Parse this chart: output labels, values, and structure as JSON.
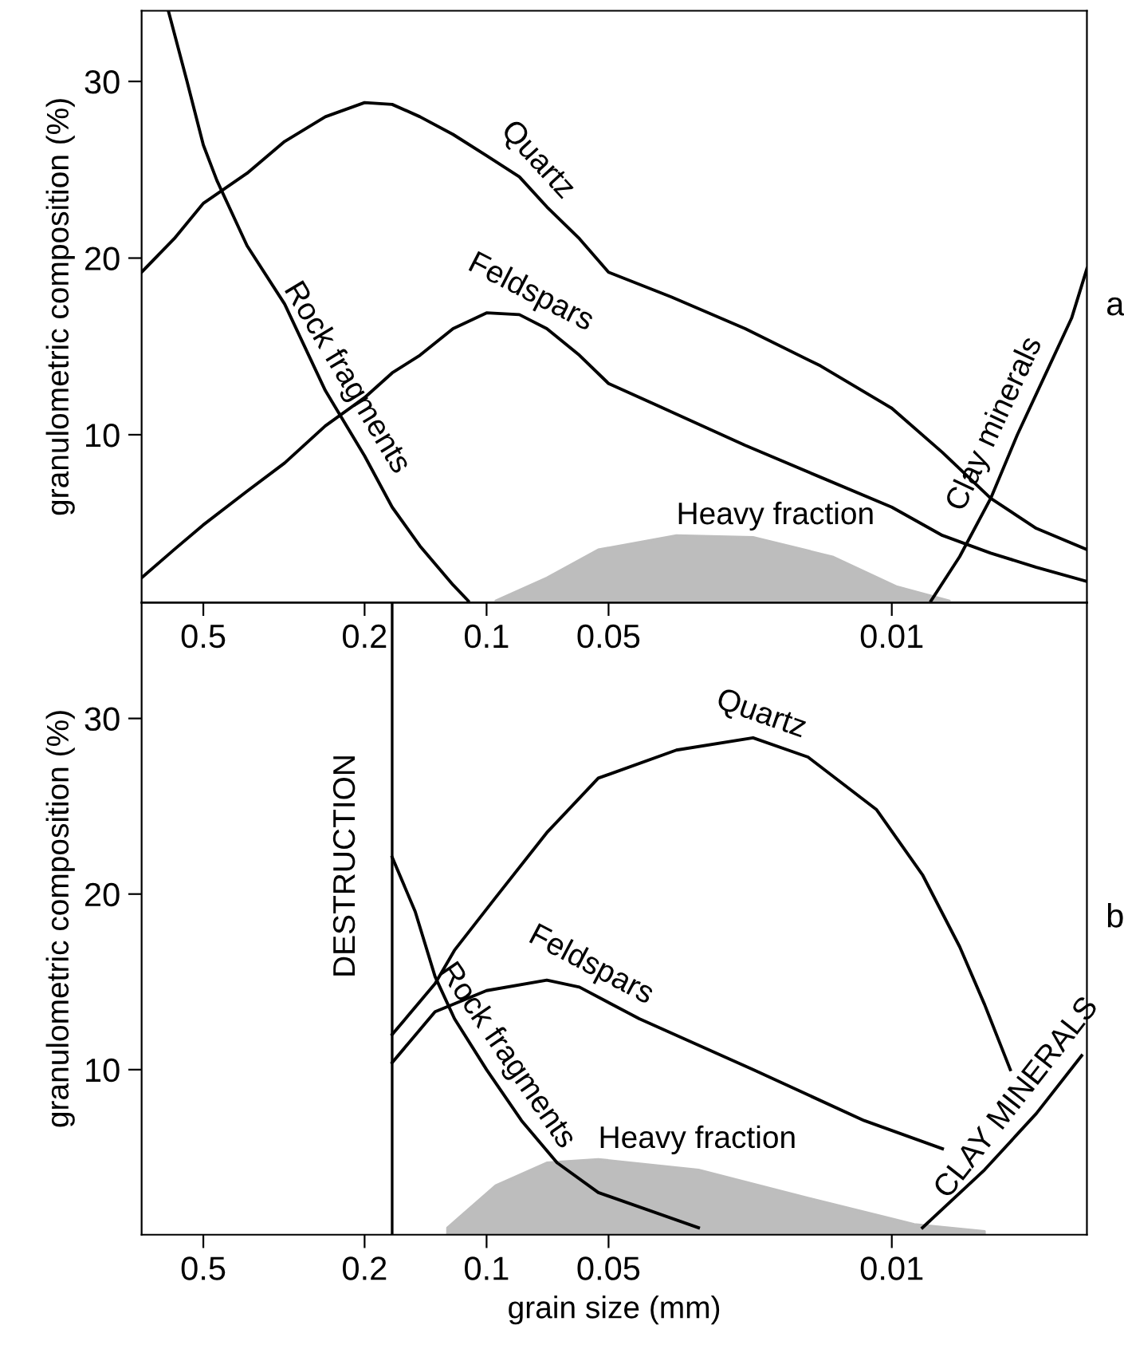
{
  "chart_data": [
    {
      "type": "line",
      "ylabel": "granulometric composition (%)",
      "xlim": [
        0.71,
        0.0033
      ],
      "ylim": [
        0.5,
        34
      ],
      "xticks": [
        0.5,
        0.2,
        0.1,
        0.05,
        0.01
      ],
      "yticks": [
        10,
        20,
        30
      ],
      "log": "x",
      "grid": false,
      "legend": false,
      "marker": "none",
      "line_style": "solid",
      "annotations": [
        "a"
      ],
      "series": [
        {
          "name": "Quartz",
          "color": "#000000",
          "x": [
            0.71,
            0.59,
            0.5,
            0.39,
            0.315,
            0.25,
            0.2,
            0.171,
            0.146,
            0.121,
            0.1,
            0.083,
            0.071,
            0.059,
            0.05,
            0.035,
            0.023,
            0.015,
            0.01,
            0.0075,
            0.0057,
            0.0044,
            0.0033
          ],
          "values": [
            19.2,
            21.1,
            23.1,
            24.8,
            26.6,
            28.0,
            28.8,
            28.7,
            28.0,
            27.0,
            25.8,
            24.6,
            22.9,
            21.1,
            19.2,
            17.8,
            16.0,
            13.9,
            11.5,
            9.0,
            6.4,
            4.7,
            3.5
          ]
        },
        {
          "name": "Feldspars",
          "color": "#000000",
          "x": [
            0.71,
            0.59,
            0.5,
            0.39,
            0.315,
            0.25,
            0.2,
            0.171,
            0.146,
            0.121,
            0.1,
            0.083,
            0.071,
            0.059,
            0.05,
            0.035,
            0.023,
            0.015,
            0.01,
            0.0075,
            0.0057,
            0.0044,
            0.0033
          ],
          "values": [
            1.9,
            3.5,
            4.9,
            6.8,
            8.4,
            10.5,
            12.1,
            13.5,
            14.5,
            16.0,
            16.9,
            16.8,
            16.0,
            14.5,
            12.9,
            11.3,
            9.4,
            7.6,
            5.9,
            4.3,
            3.3,
            2.5,
            1.7
          ]
        },
        {
          "name": "Rock fragments",
          "color": "#000000",
          "x": [
            0.61,
            0.55,
            0.5,
            0.463,
            0.39,
            0.315,
            0.25,
            0.2,
            0.171,
            0.146,
            0.121,
            0.111
          ],
          "values": [
            34.0,
            30.1,
            26.4,
            24.4,
            20.7,
            17.4,
            12.5,
            8.8,
            5.9,
            3.7,
            1.5,
            0.6
          ]
        },
        {
          "name": "Heavy fraction",
          "type": "area",
          "color": "#bdbdbd",
          "x": [
            0.095,
            0.071,
            0.053,
            0.034,
            0.022,
            0.014,
            0.0097,
            0.0072
          ],
          "values": [
            0.6,
            1.9,
            3.5,
            4.3,
            4.2,
            3.1,
            1.4,
            0.6
          ]
        },
        {
          "name": "Clay minerals",
          "color": "#000000",
          "x": [
            0.008,
            0.0068,
            0.0057,
            0.0049,
            0.0042,
            0.0036,
            0.0033
          ],
          "values": [
            0.6,
            3.1,
            6.4,
            10.0,
            13.3,
            16.6,
            19.4
          ]
        }
      ]
    },
    {
      "type": "line",
      "ylabel": "granulometric composition (%)",
      "xlabel": "grain size (mm)",
      "xlim": [
        0.71,
        0.0033
      ],
      "ylim": [
        0.6,
        36.6
      ],
      "xticks": [
        0.5,
        0.2,
        0.1,
        0.05,
        0.01
      ],
      "yticks": [
        10,
        20,
        30
      ],
      "log": "x",
      "grid": false,
      "legend": false,
      "marker": "none",
      "line_style": "solid",
      "annotations": [
        "b"
      ],
      "ref_lines": [
        {
          "axis": "x",
          "value": 0.171,
          "label": "DESTRUCTION",
          "color": "#000000"
        }
      ],
      "series": [
        {
          "name": "Quartz",
          "color": "#000000",
          "x": [
            0.171,
            0.134,
            0.12,
            0.095,
            0.071,
            0.053,
            0.034,
            0.022,
            0.0161,
            0.0109,
            0.0084,
            0.0068,
            0.0059,
            0.0051
          ],
          "values": [
            12.0,
            14.9,
            16.8,
            19.8,
            23.5,
            26.6,
            28.2,
            28.9,
            27.8,
            24.8,
            21.1,
            17.0,
            13.7,
            10.0
          ]
        },
        {
          "name": "Feldspars",
          "color": "#000000",
          "x": [
            0.171,
            0.134,
            0.1,
            0.071,
            0.059,
            0.042,
            0.022,
            0.0117,
            0.0075
          ],
          "values": [
            10.4,
            13.3,
            14.5,
            15.1,
            14.7,
            12.9,
            10.0,
            7.1,
            5.5
          ]
        },
        {
          "name": "Rock fragments",
          "color": "#000000",
          "x": [
            0.171,
            0.15,
            0.134,
            0.12,
            0.1,
            0.082,
            0.067,
            0.053,
            0.03
          ],
          "values": [
            22.1,
            19.0,
            15.3,
            12.9,
            10.0,
            7.1,
            4.7,
            3.0,
            1.0
          ]
        },
        {
          "name": "Heavy fraction",
          "type": "area",
          "color": "#bdbdbd",
          "x": [
            0.125,
            0.095,
            0.071,
            0.053,
            0.03,
            0.0161,
            0.0088,
            0.0059
          ],
          "values": [
            1.0,
            3.4,
            4.7,
            4.9,
            4.3,
            2.7,
            1.2,
            0.8
          ]
        },
        {
          "name": "CLAY MINERALS",
          "color": "#000000",
          "x": [
            0.0084,
            0.0059,
            0.0044,
            0.0034
          ],
          "values": [
            1.0,
            4.3,
            7.5,
            10.8
          ]
        }
      ]
    }
  ]
}
